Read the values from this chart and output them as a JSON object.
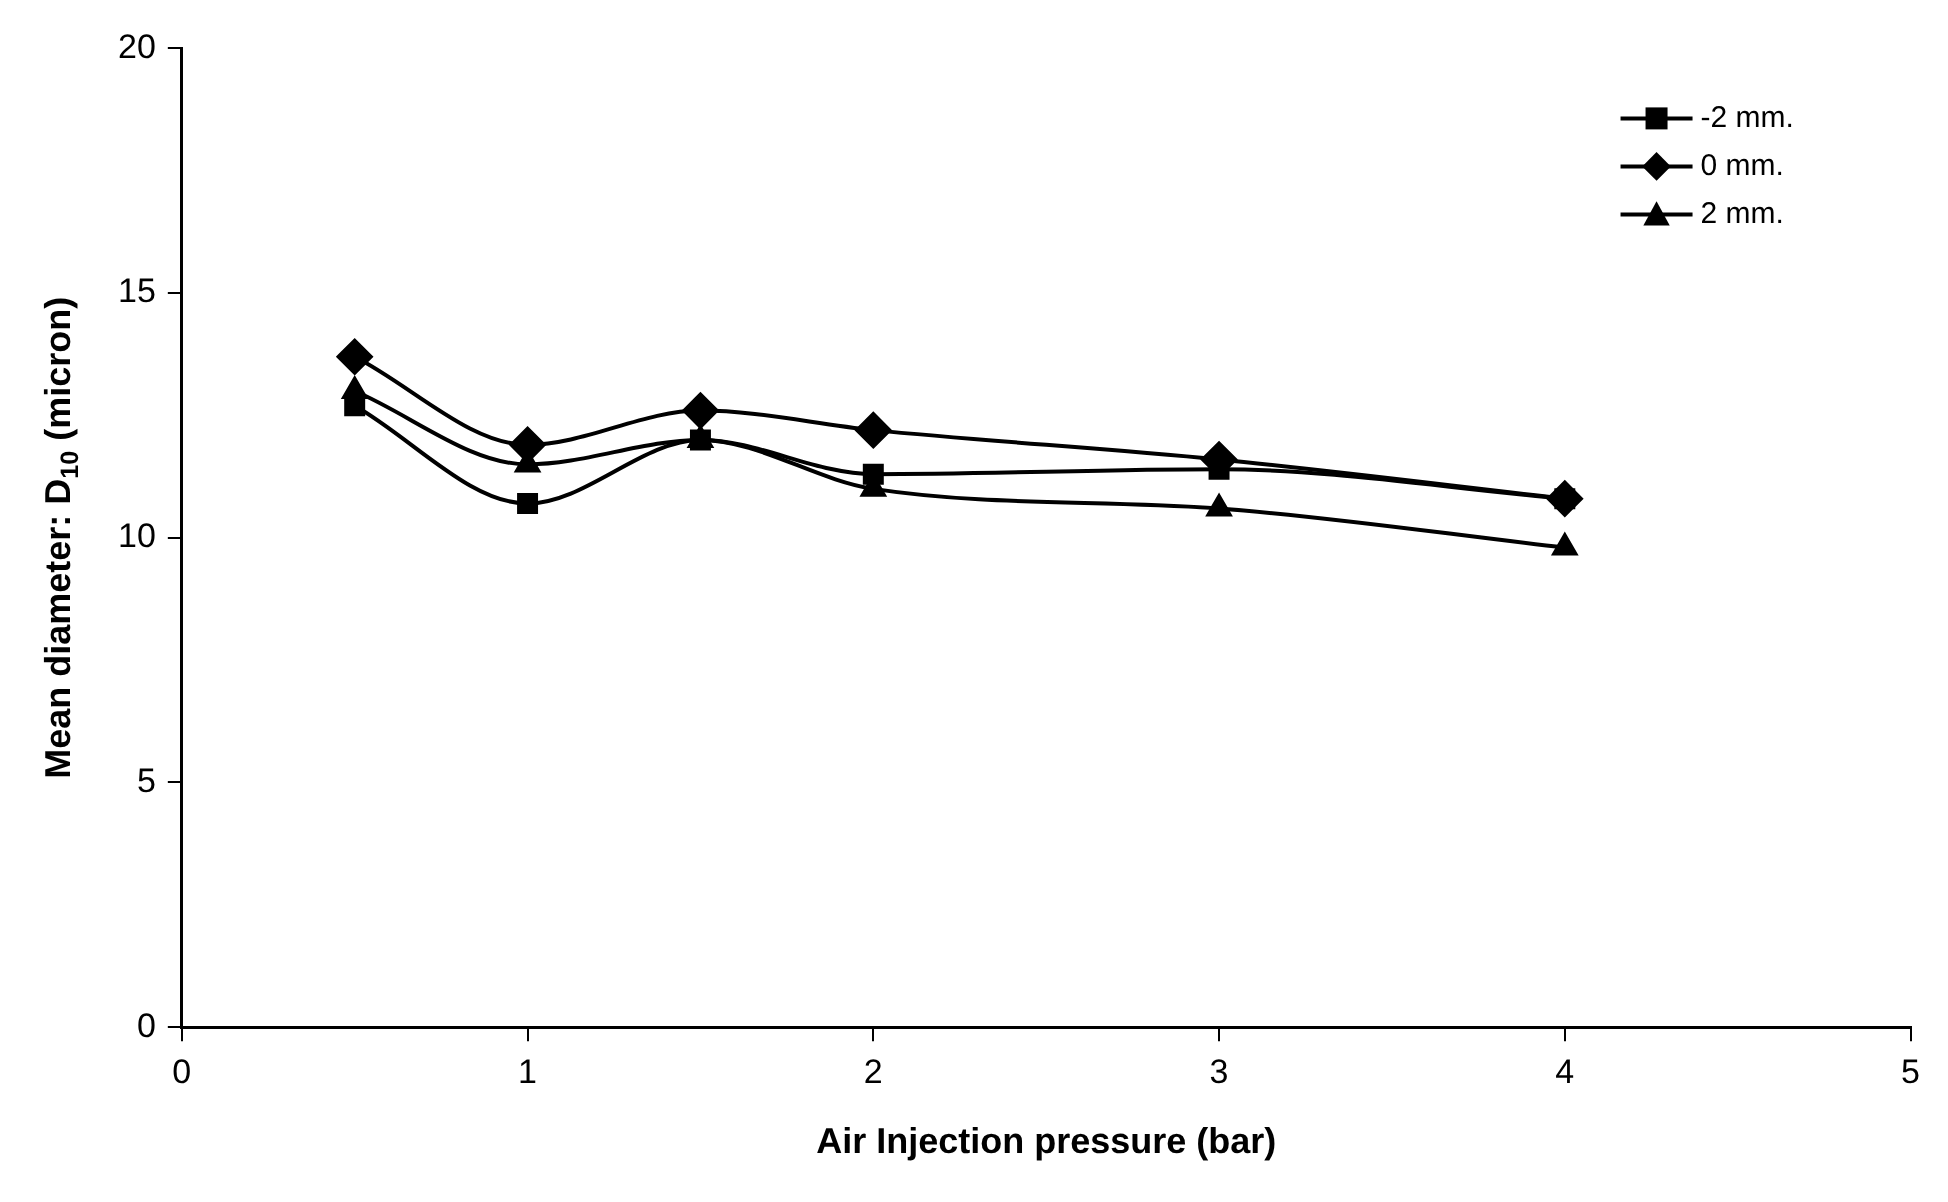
{
  "chart_data": {
    "type": "line",
    "xlabel": "Air Injection pressure (bar)",
    "ylabel": "Mean diameter: D$_{10}$ (micron)",
    "x": [
      0.5,
      1,
      1.5,
      2,
      3,
      4
    ],
    "series": [
      {
        "name": "-2 mm.",
        "color": "#000000",
        "marker": "square",
        "values": [
          12.7,
          10.7,
          12.0,
          11.3,
          11.4,
          10.8
        ]
      },
      {
        "name": "0 mm.",
        "color": "#000000",
        "marker": "diamond",
        "values": [
          13.7,
          11.9,
          12.6,
          12.2,
          11.6,
          10.8
        ]
      },
      {
        "name": "2 mm.",
        "color": "#000000",
        "marker": "triangle",
        "values": [
          13.0,
          11.5,
          12.0,
          11.0,
          10.6,
          9.8
        ]
      }
    ],
    "xlim": [
      0,
      5
    ],
    "xticks": [
      0,
      1,
      2,
      3,
      4,
      5
    ],
    "ylim": [
      0,
      20
    ],
    "yticks": [
      0,
      5,
      10,
      15,
      20
    ],
    "grid": false,
    "legend": "top right",
    "line_style": "solid"
  }
}
